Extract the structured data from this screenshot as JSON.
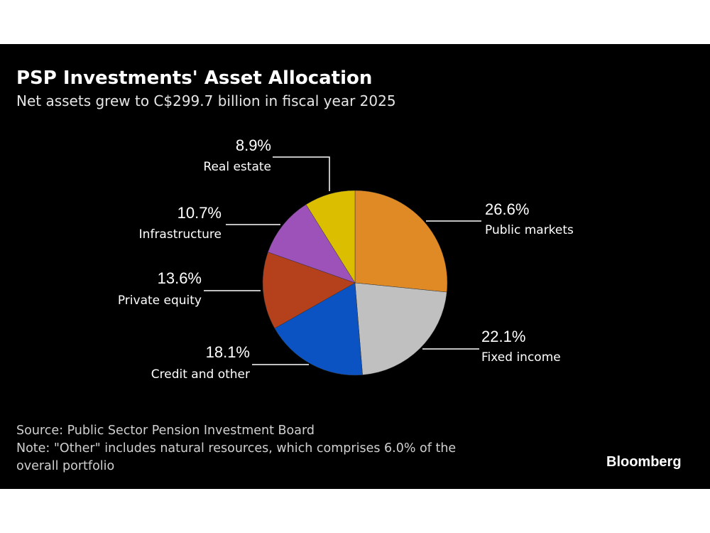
{
  "title": "PSP Investments' Asset Allocation",
  "subtitle": "Net assets grew to C$299.7 billion in fiscal year 2025",
  "chart_data": {
    "type": "pie",
    "title": "PSP Investments' Asset Allocation",
    "subtitle": "Net assets grew to C$299.7 billion in fiscal year 2025",
    "start": "12 o'clock, clockwise",
    "slices": [
      {
        "name": "Public markets",
        "value": 26.6,
        "label": "26.6%",
        "color": "#e08a26"
      },
      {
        "name": "Fixed income",
        "value": 22.1,
        "label": "22.1%",
        "color": "#c0c0c0"
      },
      {
        "name": "Credit and other",
        "value": 18.1,
        "label": "18.1%",
        "color": "#0b52c2"
      },
      {
        "name": "Private equity",
        "value": 13.6,
        "label": "13.6%",
        "color": "#b5401c"
      },
      {
        "name": "Infrastructure",
        "value": 10.7,
        "label": "10.7%",
        "color": "#9c52b8"
      },
      {
        "name": "Real estate",
        "value": 8.9,
        "label": "8.9%",
        "color": "#dcbe00"
      }
    ]
  },
  "footer": {
    "source": "Source: Public Sector Pension Investment Board",
    "note_line1": "Note: \"Other\" includes natural resources, which comprises 6.0% of the",
    "note_line2": "overall portfolio"
  },
  "brand": "Bloomberg"
}
